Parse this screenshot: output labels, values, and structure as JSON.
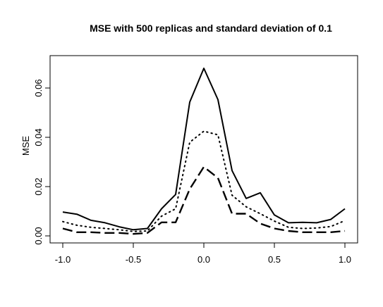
{
  "chart_data": {
    "type": "line",
    "title": "MSE with 500 replicas and standard deviation of 0.1",
    "xlabel": "",
    "ylabel": "MSE",
    "xlim": [
      -1.0,
      1.0
    ],
    "ylim": [
      0.0,
      0.07
    ],
    "xticks": [
      "-1.0",
      "-0.5",
      "0.0",
      "0.5",
      "1.0"
    ],
    "yticks": [
      "0.00",
      "0.02",
      "0.04",
      "0.06"
    ],
    "grid": false,
    "x": [
      -1.0,
      -0.9,
      -0.8,
      -0.7,
      -0.6,
      -0.5,
      -0.4,
      -0.3,
      -0.2,
      -0.1,
      0.0,
      0.1,
      0.2,
      0.3,
      0.4,
      0.5,
      0.6,
      0.7,
      0.8,
      0.9,
      1.0
    ],
    "series": [
      {
        "style": "solid",
        "values": [
          0.0097,
          0.0088,
          0.0063,
          0.0053,
          0.0037,
          0.0025,
          0.003,
          0.011,
          0.0168,
          0.0543,
          0.068,
          0.0553,
          0.0265,
          0.0152,
          0.0175,
          0.0085,
          0.0053,
          0.0055,
          0.0053,
          0.0067,
          0.011
        ]
      },
      {
        "style": "dotted",
        "values": [
          0.0058,
          0.0043,
          0.0035,
          0.003,
          0.0025,
          0.0018,
          0.002,
          0.008,
          0.011,
          0.038,
          0.0425,
          0.041,
          0.0165,
          0.0118,
          0.009,
          0.006,
          0.0035,
          0.003,
          0.0032,
          0.0038,
          0.0062
        ]
      },
      {
        "style": "dashed",
        "values": [
          0.003,
          0.0015,
          0.0015,
          0.0012,
          0.0012,
          0.0008,
          0.0012,
          0.0055,
          0.0055,
          0.019,
          0.028,
          0.0235,
          0.009,
          0.009,
          0.005,
          0.003,
          0.002,
          0.0015,
          0.0015,
          0.0015,
          0.002
        ]
      }
    ]
  }
}
